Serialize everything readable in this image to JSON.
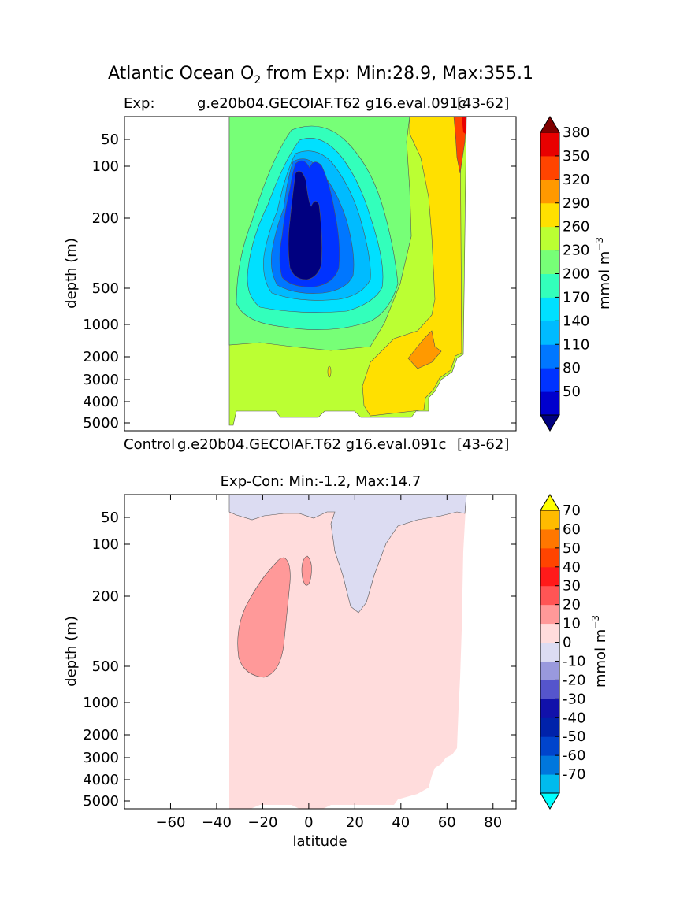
{
  "suptitle": {
    "prefix": "Atlantic Ocean O",
    "subscript": "2",
    "suffix": " from Exp: Min:28.9, Max:355.1"
  },
  "chart_data": [
    {
      "type": "heatmap",
      "panel": "top",
      "title_left": "Exp:",
      "title_center": "g.e20b04.GECOIAF.T62 g16.eval.091c",
      "title_right": "[43-62]",
      "xlabel": "",
      "ylabel": "depth (m)",
      "xlim": [
        -80,
        90
      ],
      "y_scale": "log-like depth (reversed)",
      "yticks": [
        "50",
        "100",
        "200",
        "500",
        "1000",
        "2000",
        "3000",
        "4000",
        "5000"
      ],
      "data_extent_latitude": [
        -34,
        68
      ],
      "colorbar": {
        "label": "mmol m",
        "label_sup": "−3",
        "extend": "both",
        "ticks": [
          "50",
          "80",
          "110",
          "140",
          "170",
          "200",
          "230",
          "260",
          "290",
          "320",
          "350",
          "380"
        ],
        "colors": [
          "#000080",
          "#0000cd",
          "#0033ff",
          "#0077ff",
          "#00bbff",
          "#00e0ff",
          "#33ffbb",
          "#77ff77",
          "#bbff33",
          "#ffe000",
          "#ff9900",
          "#ff4400",
          "#e80000",
          "#800000"
        ]
      },
      "summary": {
        "min": 28.9,
        "max": 355.1
      }
    },
    {
      "type": "heatmap",
      "panel": "bottom",
      "header_left": "Control",
      "header_center": "g.e20b04.GECOIAF.T62 g16.eval.091c",
      "header_right": "[43-62]",
      "title": "Exp-Con: Min:-1.2, Max:14.7",
      "xlabel": "latitude",
      "ylabel": "depth (m)",
      "xlim": [
        -80,
        90
      ],
      "xticks": [
        "−60",
        "−40",
        "−20",
        "0",
        "20",
        "40",
        "60",
        "80"
      ],
      "yticks": [
        "50",
        "100",
        "200",
        "500",
        "1000",
        "2000",
        "3000",
        "4000",
        "5000"
      ],
      "data_extent_latitude": [
        -34,
        68
      ],
      "colorbar": {
        "label": "mmol m",
        "label_sup": "−3",
        "extend": "both",
        "ticks": [
          "-70",
          "-60",
          "-50",
          "-40",
          "-30",
          "-20",
          "-10",
          "0",
          "10",
          "20",
          "30",
          "40",
          "50",
          "60",
          "70"
        ],
        "colors": [
          "#00ffff",
          "#00bbee",
          "#0077dd",
          "#0044cc",
          "#0022aa",
          "#1111aa",
          "#5555cc",
          "#9999dd",
          "#dcdcf2",
          "#ffdcdc",
          "#ff9999",
          "#ff5555",
          "#ff1a1a",
          "#ff4400",
          "#ff7700",
          "#ffbb00",
          "#ffff00"
        ]
      },
      "summary": {
        "min": -1.2,
        "max": 14.7
      }
    }
  ]
}
